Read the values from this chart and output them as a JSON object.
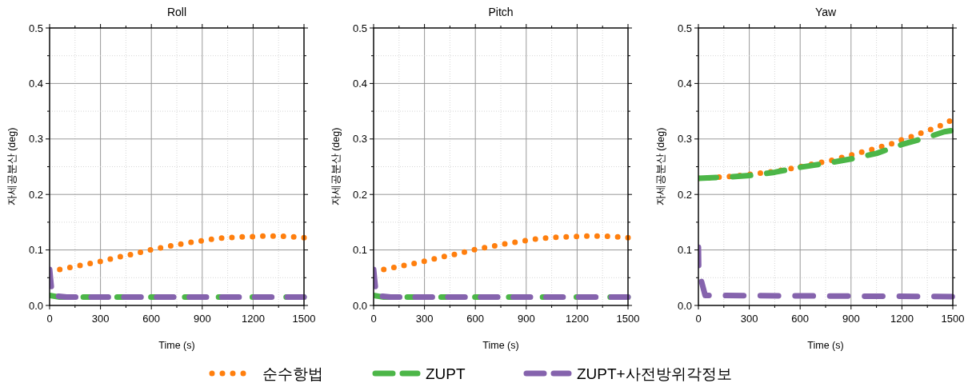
{
  "chart_data": [
    {
      "type": "line",
      "title": "Roll",
      "xlabel": "Time (s)",
      "ylabel": "자세공분산 (deg)",
      "xlim": [
        0,
        1500
      ],
      "ylim": [
        0,
        0.5
      ],
      "xticks": [
        0,
        {
          "value": 150,
          "label": null
        },
        300,
        {
          "value": 450,
          "label": null
        },
        600,
        {
          "value": 750,
          "label": null
        },
        900,
        {
          "value": 1050,
          "label": null
        },
        1200,
        {
          "value": 1350,
          "label": null
        },
        1500
      ],
      "yticks": [
        {
          "value": 0,
          "label": "0.0"
        },
        {
          "value": 0.05,
          "label": null
        },
        0.1,
        {
          "value": 0.15,
          "label": null
        },
        0.2,
        {
          "value": 0.25,
          "label": null
        },
        0.3,
        {
          "value": 0.35,
          "label": null
        },
        0.4,
        {
          "value": 0.45,
          "label": null
        },
        0.5
      ],
      "grid": true,
      "legend": "bottom",
      "series": [
        {
          "name": "순수항법",
          "color": "#ff7f0e",
          "line_style": "dotted",
          "x": [
            60,
            130,
            195,
            265,
            325,
            390,
            450,
            515,
            575,
            640,
            710,
            780,
            840,
            905,
            970,
            1040,
            1100,
            1190,
            1270,
            1340,
            1420,
            1500
          ],
          "values": [
            0.065,
            0.069,
            0.073,
            0.077,
            0.081,
            0.086,
            0.09,
            0.094,
            0.099,
            0.103,
            0.107,
            0.111,
            0.114,
            0.117,
            0.12,
            0.122,
            0.123,
            0.124,
            0.125,
            0.125,
            0.124,
            0.122
          ]
        },
        {
          "name": "ZUPT",
          "color": "#4cb648",
          "line_style": "dashed",
          "x": [
            0,
            60,
            1500
          ],
          "values": [
            0.018,
            0.015,
            0.015
          ]
        },
        {
          "name": "ZUPT+사전방위각정보",
          "color": "#8563ad",
          "line_style": "dashed",
          "x": [
            0,
            15,
            100,
            1500
          ],
          "values": [
            0.065,
            0.018,
            0.015,
            0.015
          ]
        }
      ]
    },
    {
      "type": "line",
      "title": "Pitch",
      "xlabel": "Time (s)",
      "ylabel": "자세공분산 (deg)",
      "xlim": [
        0,
        1500
      ],
      "ylim": [
        0,
        0.5
      ],
      "xticks": [
        0,
        {
          "value": 150,
          "label": null
        },
        300,
        {
          "value": 450,
          "label": null
        },
        600,
        {
          "value": 750,
          "label": null
        },
        900,
        {
          "value": 1050,
          "label": null
        },
        1200,
        {
          "value": 1350,
          "label": null
        },
        1500
      ],
      "yticks": [
        {
          "value": 0,
          "label": "0.0"
        },
        {
          "value": 0.05,
          "label": null
        },
        0.1,
        {
          "value": 0.15,
          "label": null
        },
        0.2,
        {
          "value": 0.25,
          "label": null
        },
        0.3,
        {
          "value": 0.35,
          "label": null
        },
        0.4,
        {
          "value": 0.45,
          "label": null
        },
        0.5
      ],
      "grid": true,
      "series": [
        {
          "color": "#ff7f0e",
          "line_style": "dotted",
          "x": [
            60,
            130,
            195,
            260,
            320,
            385,
            445,
            510,
            570,
            635,
            705,
            775,
            835,
            900,
            965,
            1035,
            1095,
            1180,
            1265,
            1345,
            1415,
            1500
          ],
          "values": [
            0.065,
            0.069,
            0.073,
            0.077,
            0.081,
            0.086,
            0.09,
            0.094,
            0.099,
            0.103,
            0.107,
            0.111,
            0.114,
            0.117,
            0.12,
            0.122,
            0.123,
            0.124,
            0.125,
            0.125,
            0.124,
            0.122
          ]
        },
        {
          "color": "#4cb648",
          "line_style": "dashed",
          "x": [
            0,
            60,
            1500
          ],
          "values": [
            0.018,
            0.015,
            0.015
          ]
        },
        {
          "color": "#8563ad",
          "line_style": "dashed",
          "x": [
            0,
            15,
            100,
            1500
          ],
          "values": [
            0.065,
            0.018,
            0.015,
            0.015
          ]
        }
      ]
    },
    {
      "type": "line",
      "title": "Yaw",
      "xlabel": "Time (s)",
      "ylabel": "자세공분산 (deg)",
      "xlim": [
        0,
        1500
      ],
      "ylim": [
        0,
        0.5
      ],
      "xticks": [
        0,
        {
          "value": 150,
          "label": null
        },
        300,
        {
          "value": 450,
          "label": null
        },
        600,
        {
          "value": 750,
          "label": null
        },
        900,
        {
          "value": 1050,
          "label": null
        },
        1200,
        {
          "value": 1350,
          "label": null
        },
        1500
      ],
      "yticks": [
        {
          "value": 0,
          "label": "0.0"
        },
        {
          "value": 0.05,
          "label": null
        },
        0.1,
        {
          "value": 0.15,
          "label": null
        },
        0.2,
        {
          "value": 0.25,
          "label": null
        },
        0.3,
        {
          "value": 0.35,
          "label": null
        },
        0.4,
        {
          "value": 0.45,
          "label": null
        },
        0.5
      ],
      "grid": true,
      "series": [
        {
          "color": "#ff7f0e",
          "line_style": "dotted",
          "x": [
            0,
            74,
            205,
            332,
            458,
            584,
            647,
            711,
            778,
            837,
            900,
            958,
            1023,
            1086,
            1145,
            1203,
            1266,
            1326,
            1386,
            1421,
            1481
          ],
          "values": [
            0.229,
            0.23,
            0.233,
            0.237,
            0.242,
            0.249,
            0.253,
            0.257,
            0.261,
            0.266,
            0.271,
            0.276,
            0.281,
            0.287,
            0.292,
            0.299,
            0.305,
            0.312,
            0.319,
            0.323,
            0.332
          ]
        },
        {
          "color": "#4cb648",
          "line_style": "dashed",
          "x": [
            0,
            200,
            300,
            450,
            600,
            750,
            900,
            1050,
            1200,
            1350,
            1450,
            1490
          ],
          "values": [
            0.229,
            0.232,
            0.234,
            0.24,
            0.249,
            0.256,
            0.264,
            0.274,
            0.29,
            0.303,
            0.313,
            0.315
          ]
        },
        {
          "color": "#8563ad",
          "line_style": "dashed",
          "x": [
            0,
            2,
            40,
            1500
          ],
          "values": [
            0.105,
            0.062,
            0.018,
            0.016
          ]
        }
      ]
    }
  ]
}
